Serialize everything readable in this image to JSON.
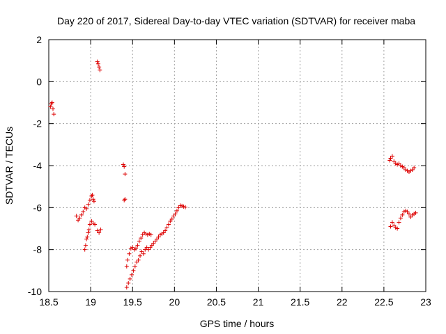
{
  "chart_data": {
    "type": "scatter",
    "title": "Day 220 of 2017, Sidereal Day-to-day VTEC variation (SDTVAR) for receiver maba",
    "xlabel": "GPS time / hours",
    "ylabel": "SDTVAR / TECUs",
    "xlim": [
      18.5,
      23
    ],
    "ylim": [
      -10,
      2
    ],
    "xticks": [
      "18.5",
      "19",
      "19.5",
      "20",
      "20.5",
      "21",
      "21.5",
      "22",
      "22.5",
      "23"
    ],
    "yticks": [
      "-10",
      "-8",
      "-6",
      "-4",
      "-2",
      "0",
      "2"
    ],
    "grid": true,
    "marker": "+",
    "series": [
      {
        "name": "SDTVAR",
        "color": "#dd0000",
        "points": [
          [
            18.52,
            -1.2
          ],
          [
            18.53,
            -1.05
          ],
          [
            18.54,
            -1.0
          ],
          [
            18.55,
            -1.3
          ],
          [
            18.56,
            -1.55
          ],
          [
            18.83,
            -6.4
          ],
          [
            18.85,
            -6.6
          ],
          [
            18.87,
            -6.5
          ],
          [
            18.89,
            -6.35
          ],
          [
            18.91,
            -6.2
          ],
          [
            18.93,
            -6.0
          ],
          [
            18.95,
            -6.05
          ],
          [
            18.97,
            -5.85
          ],
          [
            18.99,
            -5.65
          ],
          [
            19.01,
            -5.45
          ],
          [
            19.02,
            -5.4
          ],
          [
            19.03,
            -5.6
          ],
          [
            19.04,
            -5.7
          ],
          [
            18.93,
            -8.0
          ],
          [
            18.94,
            -7.8
          ],
          [
            18.95,
            -7.5
          ],
          [
            18.96,
            -7.4
          ],
          [
            18.97,
            -7.2
          ],
          [
            18.98,
            -7.05
          ],
          [
            18.99,
            -6.8
          ],
          [
            19.01,
            -6.65
          ],
          [
            19.03,
            -6.75
          ],
          [
            19.05,
            -6.8
          ],
          [
            19.08,
            0.95
          ],
          [
            19.09,
            0.85
          ],
          [
            19.1,
            0.7
          ],
          [
            19.11,
            0.55
          ],
          [
            19.08,
            -7.1
          ],
          [
            19.1,
            -7.2
          ],
          [
            19.12,
            -7.05
          ],
          [
            19.39,
            -3.95
          ],
          [
            19.4,
            -4.05
          ],
          [
            19.41,
            -4.4
          ],
          [
            19.4,
            -5.65
          ],
          [
            19.41,
            -5.6
          ],
          [
            19.43,
            -9.8
          ],
          [
            19.45,
            -9.6
          ],
          [
            19.47,
            -9.4
          ],
          [
            19.49,
            -9.2
          ],
          [
            19.51,
            -9.0
          ],
          [
            19.53,
            -8.8
          ],
          [
            19.55,
            -8.6
          ],
          [
            19.57,
            -8.5
          ],
          [
            19.59,
            -8.3
          ],
          [
            19.61,
            -8.1
          ],
          [
            19.63,
            -8.2
          ],
          [
            19.65,
            -8.0
          ],
          [
            19.67,
            -7.9
          ],
          [
            19.43,
            -8.8
          ],
          [
            19.44,
            -8.5
          ],
          [
            19.46,
            -8.2
          ],
          [
            19.48,
            -7.95
          ],
          [
            19.5,
            -7.9
          ],
          [
            19.52,
            -8.0
          ],
          [
            19.54,
            -7.95
          ],
          [
            19.56,
            -7.8
          ],
          [
            19.58,
            -7.6
          ],
          [
            19.6,
            -7.45
          ],
          [
            19.62,
            -7.3
          ],
          [
            19.64,
            -7.2
          ],
          [
            19.66,
            -7.25
          ],
          [
            19.68,
            -7.3
          ],
          [
            19.7,
            -7.25
          ],
          [
            19.72,
            -7.3
          ],
          [
            19.69,
            -8.0
          ],
          [
            19.71,
            -7.9
          ],
          [
            19.73,
            -7.8
          ],
          [
            19.75,
            -7.7
          ],
          [
            19.77,
            -7.6
          ],
          [
            19.79,
            -7.5
          ],
          [
            19.81,
            -7.4
          ],
          [
            19.83,
            -7.3
          ],
          [
            19.85,
            -7.25
          ],
          [
            19.87,
            -7.2
          ],
          [
            19.89,
            -7.1
          ],
          [
            19.91,
            -6.95
          ],
          [
            19.93,
            -6.8
          ],
          [
            19.95,
            -6.65
          ],
          [
            19.97,
            -6.55
          ],
          [
            19.99,
            -6.4
          ],
          [
            20.01,
            -6.3
          ],
          [
            20.03,
            -6.15
          ],
          [
            20.05,
            -6.0
          ],
          [
            20.07,
            -5.9
          ],
          [
            20.09,
            -5.92
          ],
          [
            20.11,
            -5.95
          ],
          [
            20.13,
            -5.98
          ],
          [
            22.57,
            -3.75
          ],
          [
            22.58,
            -3.65
          ],
          [
            22.6,
            -3.55
          ],
          [
            22.62,
            -3.8
          ],
          [
            22.64,
            -3.9
          ],
          [
            22.66,
            -3.95
          ],
          [
            22.68,
            -3.9
          ],
          [
            22.7,
            -4.0
          ],
          [
            22.72,
            -4.05
          ],
          [
            22.74,
            -4.1
          ],
          [
            22.76,
            -4.2
          ],
          [
            22.78,
            -4.25
          ],
          [
            22.8,
            -4.3
          ],
          [
            22.82,
            -4.25
          ],
          [
            22.84,
            -4.2
          ],
          [
            22.86,
            -4.1
          ],
          [
            22.58,
            -6.9
          ],
          [
            22.6,
            -6.7
          ],
          [
            22.62,
            -6.85
          ],
          [
            22.64,
            -6.95
          ],
          [
            22.66,
            -7.0
          ],
          [
            22.68,
            -6.7
          ],
          [
            22.7,
            -6.5
          ],
          [
            22.72,
            -6.35
          ],
          [
            22.74,
            -6.2
          ],
          [
            22.76,
            -6.15
          ],
          [
            22.78,
            -6.2
          ],
          [
            22.8,
            -6.3
          ],
          [
            22.82,
            -6.45
          ],
          [
            22.84,
            -6.35
          ],
          [
            22.86,
            -6.3
          ],
          [
            22.88,
            -6.25
          ]
        ]
      }
    ]
  }
}
